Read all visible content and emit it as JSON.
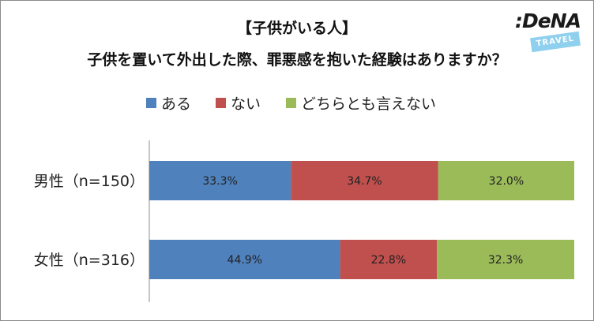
{
  "logo": {
    "word": ":DeNA",
    "sub": "TRAVEL"
  },
  "colors": {
    "ある": "#4f81bd",
    "ない": "#c0504d",
    "どちらとも言えない": "#9bbb59"
  },
  "chart_data": {
    "type": "bar",
    "orientation": "horizontal",
    "stacked": "100%",
    "title": "【子供がいる人】",
    "subtitle": "子供を置いて外出した際、罪悪感を抱いた経験はありますか？",
    "categories": [
      "男性（n=150）",
      "女性（n=316）"
    ],
    "series": [
      {
        "name": "ある",
        "values": [
          33.3,
          44.9
        ],
        "labels": [
          "33.3%",
          "44.9%"
        ]
      },
      {
        "name": "ない",
        "values": [
          34.7,
          22.8
        ],
        "labels": [
          "34.7%",
          "22.8%"
        ]
      },
      {
        "name": "どちらとも言えない",
        "values": [
          32.0,
          32.3
        ],
        "labels": [
          "32.0%",
          "32.3%"
        ]
      }
    ],
    "xlim": [
      0,
      100
    ],
    "grid": false,
    "legend_position": "top"
  }
}
